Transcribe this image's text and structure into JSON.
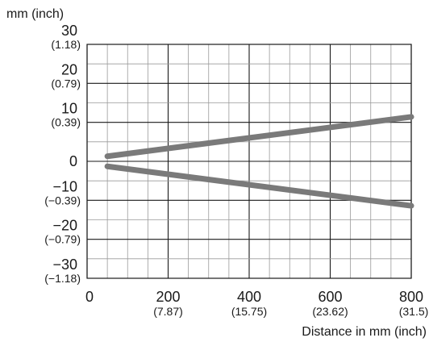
{
  "chart_data": {
    "type": "line",
    "ylabel": "mm (inch)",
    "xlabel": "Distance in mm (inch)",
    "xlim": [
      0,
      800
    ],
    "ylim": [
      -30,
      30
    ],
    "grid": true,
    "x_ticks": [
      {
        "value": 0,
        "label": "0",
        "sub": ""
      },
      {
        "value": 200,
        "label": "200",
        "sub": "(7.87)"
      },
      {
        "value": 400,
        "label": "400",
        "sub": "(15.75)"
      },
      {
        "value": 600,
        "label": "600",
        "sub": "(23.62)"
      },
      {
        "value": 800,
        "label": "800",
        "sub": "(31.5)"
      }
    ],
    "y_ticks": [
      {
        "value": 30,
        "label": "30",
        "sub": "(1.18)"
      },
      {
        "value": 20,
        "label": "20",
        "sub": "(0.79)"
      },
      {
        "value": 10,
        "label": "10",
        "sub": "(0.39)"
      },
      {
        "value": 0,
        "label": "0",
        "sub": ""
      },
      {
        "value": -10,
        "label": "−10",
        "sub": "(−0.39)"
      },
      {
        "value": -20,
        "label": "−20",
        "sub": "(−0.79)"
      },
      {
        "value": -30,
        "label": "−30",
        "sub": "(−1.18)"
      }
    ],
    "series": [
      {
        "values": [
          [
            50,
            1.3
          ],
          [
            800,
            11.4
          ]
        ],
        "color": "#7a7a7a"
      },
      {
        "values": [
          [
            50,
            -1.3
          ],
          [
            800,
            -11.4
          ]
        ],
        "color": "#7a7a7a"
      }
    ]
  }
}
